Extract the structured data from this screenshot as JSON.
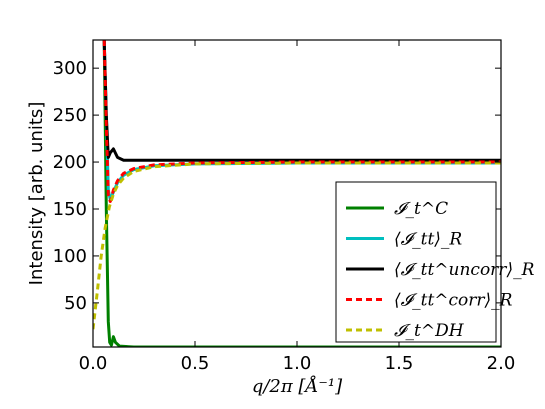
{
  "chart_data": {
    "type": "line",
    "title": "",
    "xlabel": "q/2π [Å⁻¹]",
    "ylabel": "Intensity [arb. units]",
    "xlim": [
      0.0,
      2.0
    ],
    "ylim": [
      3,
      330
    ],
    "xticks": [
      0.0,
      0.5,
      1.0,
      1.5,
      2.0
    ],
    "xtick_labels": [
      "0.0",
      "0.5",
      "1.0",
      "1.5",
      "2.0"
    ],
    "yticks": [
      50,
      100,
      150,
      200,
      250,
      300
    ],
    "ytick_labels": [
      "50",
      "100",
      "150",
      "200",
      "250",
      "300"
    ],
    "grid": false,
    "legend_position": "lower-right",
    "series": [
      {
        "name": "𝓘_t^C",
        "color": "#008000",
        "dash": "solid",
        "x": [
          0.055,
          0.065,
          0.075,
          0.082,
          0.09,
          0.1,
          0.11,
          0.13,
          0.2,
          0.5,
          1.0,
          1.5,
          2.0
        ],
        "y": [
          330,
          150,
          30,
          8,
          5,
          14,
          8,
          4,
          3,
          3,
          3,
          3,
          3
        ]
      },
      {
        "name": "⟨𝓘_tt⟩_R",
        "color": "#00bfbf",
        "dash": "solid",
        "x": [
          0.055,
          0.065,
          0.075,
          0.085,
          0.1,
          0.12,
          0.15,
          0.2,
          0.3,
          0.5,
          1.0,
          1.5,
          2.0
        ],
        "y": [
          330,
          250,
          170,
          160,
          168,
          178,
          186,
          192,
          196,
          198,
          199,
          199,
          199
        ]
      },
      {
        "name": "⟨𝓘_tt^uncorr⟩_R",
        "color": "#000000",
        "dash": "solid",
        "x": [
          0.055,
          0.065,
          0.075,
          0.085,
          0.1,
          0.12,
          0.15,
          0.2,
          0.3,
          0.5,
          1.0,
          1.5,
          2.0
        ],
        "y": [
          330,
          250,
          205,
          210,
          214,
          205,
          202,
          202,
          202,
          202,
          202,
          202,
          202
        ]
      },
      {
        "name": "⟨𝓘_tt^corr⟩_R",
        "color": "#ff0000",
        "dash": "dashed",
        "x": [
          0.055,
          0.065,
          0.075,
          0.085,
          0.1,
          0.12,
          0.15,
          0.2,
          0.3,
          0.5,
          1.0,
          1.5,
          2.0
        ],
        "y": [
          330,
          240,
          165,
          158,
          170,
          180,
          188,
          193,
          197,
          199,
          200,
          200,
          200
        ]
      },
      {
        "name": "𝓘_t^DH",
        "color": "#bfbf00",
        "dash": "dashed",
        "x": [
          0.0,
          0.02,
          0.04,
          0.06,
          0.08,
          0.1,
          0.12,
          0.15,
          0.2,
          0.3,
          0.5,
          1.0,
          1.5,
          2.0
        ],
        "y": [
          22,
          60,
          100,
          130,
          152,
          166,
          175,
          183,
          190,
          195,
          198,
          199,
          199,
          199
        ]
      }
    ]
  }
}
